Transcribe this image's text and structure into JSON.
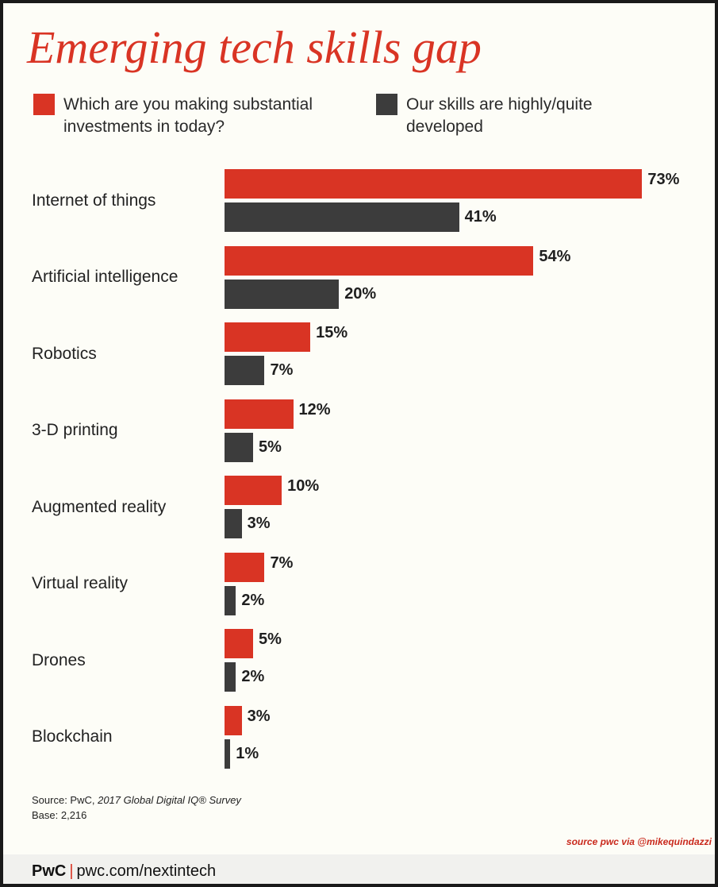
{
  "title": "Emerging tech skills gap",
  "legend": {
    "series1": "Which are you making substantial investments in today?",
    "series1_line1": "Which are you making substantial",
    "series1_line2": "investments in today?",
    "series2": "Our skills are highly/quite developed",
    "series2_line1": "Our skills are highly/quite",
    "series2_line2": "developed"
  },
  "colors": {
    "series1": "#d93424",
    "series2": "#3c3c3c",
    "title": "#d93424"
  },
  "chart_data": {
    "type": "bar",
    "orientation": "horizontal",
    "title": "Emerging tech skills gap",
    "categories": [
      "Internet of things",
      "Artificial intelligence",
      "Robotics",
      "3-D printing",
      "Augmented reality",
      "Virtual reality",
      "Drones",
      "Blockchain"
    ],
    "series": [
      {
        "name": "Which are you making substantial investments in today?",
        "values": [
          73,
          54,
          15,
          12,
          10,
          7,
          5,
          3
        ],
        "labels": [
          "73%",
          "54%",
          "15%",
          "12%",
          "10%",
          "7%",
          "5%",
          "3%"
        ]
      },
      {
        "name": "Our skills are highly/quite developed",
        "values": [
          41,
          20,
          7,
          5,
          3,
          2,
          2,
          1
        ],
        "labels": [
          "41%",
          "20%",
          "7%",
          "5%",
          "3%",
          "2%",
          "2%",
          "1%"
        ]
      }
    ],
    "xlim": [
      0,
      100
    ],
    "unit": "%",
    "grid": false,
    "legend_position": "top"
  },
  "source": {
    "prefix": "Source: PwC, ",
    "publication": "2017 Global Digital IQ® Survey",
    "base": "Base: 2,216"
  },
  "credit": "source pwc via @mikequindazzi",
  "footer": {
    "brand": "PwC",
    "separator": "|",
    "url": "pwc.com/nextintech"
  }
}
